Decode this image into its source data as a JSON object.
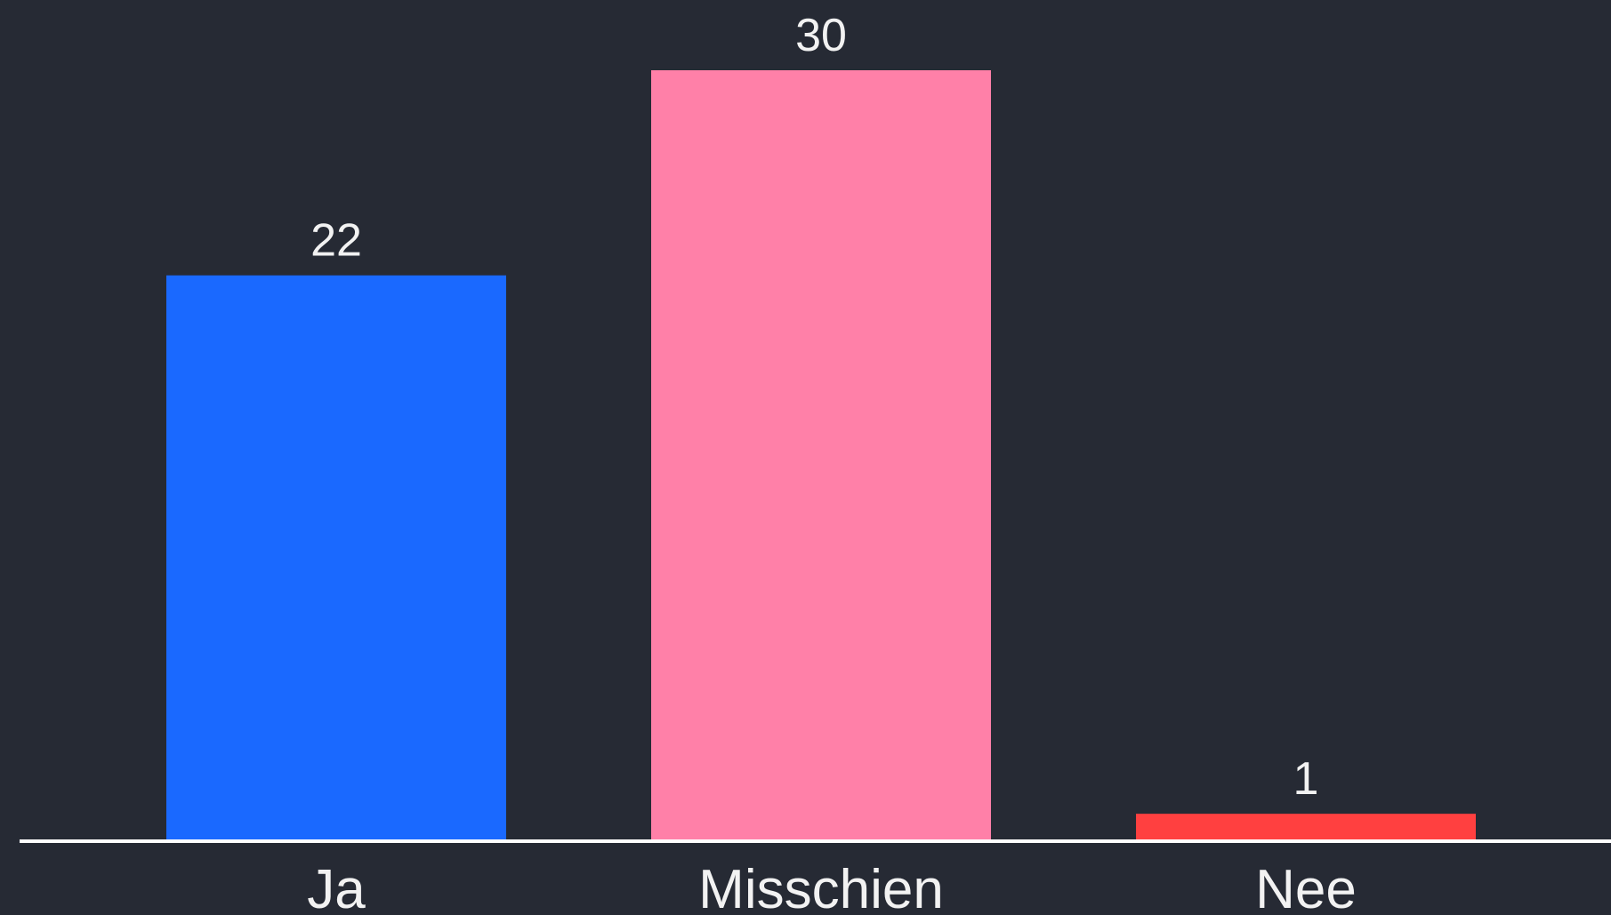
{
  "chart_data": {
    "type": "bar",
    "categories": [
      "Ja",
      "Misschien",
      "Nee"
    ],
    "values": [
      22,
      30,
      1
    ],
    "data_labels": [
      "22",
      "30",
      "1"
    ],
    "colors": [
      "#1a69ff",
      "#ff80a8",
      "#ff4040"
    ],
    "title": "",
    "xlabel": "",
    "ylabel": "",
    "ylim": [
      0,
      30
    ],
    "grid": false,
    "legend": "none",
    "background_color": "#262a34",
    "axis_color": "#ffffff",
    "text_color": "#f2f2f2"
  }
}
